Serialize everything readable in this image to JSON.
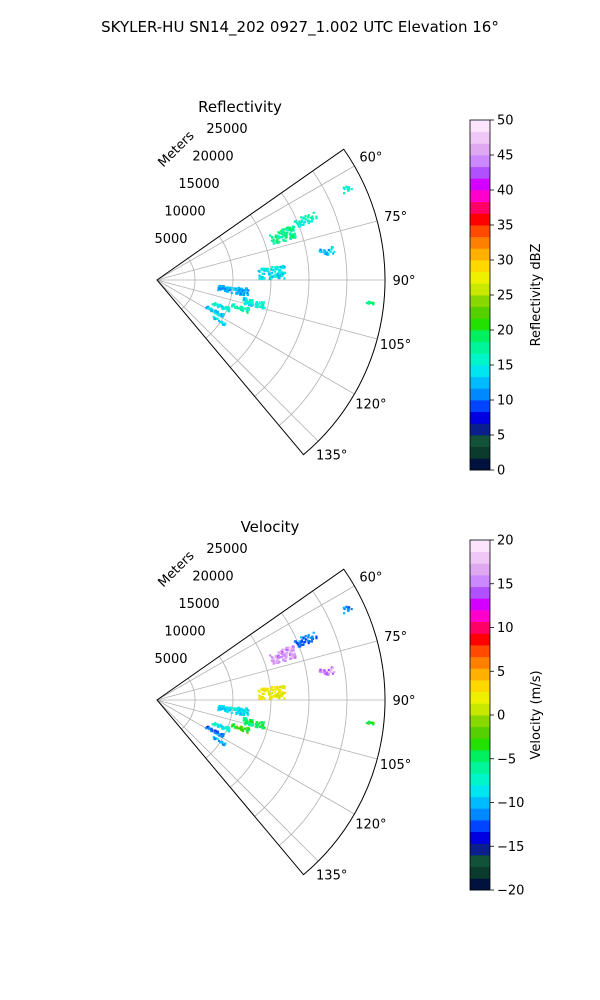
{
  "figure": {
    "suptitle": "SKYLER-HU  SN14_202  0927_1.002 UTC Elevation 16°"
  },
  "chart_data": [
    {
      "type": "heatmap",
      "projection": "polar-sector",
      "title": "Reflectivity",
      "radius_label": "Meters",
      "radius_range": [
        0,
        30000
      ],
      "radius_ticks": [
        5000,
        10000,
        15000,
        20000,
        25000
      ],
      "azimuth_range_deg": [
        55,
        140
      ],
      "azimuth_ticks_deg": [
        60,
        75,
        90,
        105,
        120,
        135
      ],
      "azimuth_tick_labels": [
        "60°",
        "75°",
        "90°",
        "105°",
        "120°",
        "135°"
      ],
      "grid": true,
      "colorbar": {
        "label": "Reflectivity dBZ",
        "range": [
          0,
          50
        ],
        "ticks": [
          0,
          5,
          10,
          15,
          20,
          25,
          30,
          35,
          40,
          45,
          50
        ],
        "tick_labels": [
          "0",
          "5",
          "10",
          "15",
          "20",
          "25",
          "30",
          "35",
          "40",
          "45",
          "50"
        ],
        "colors": [
          "#02123e",
          "#0a3b2c",
          "#12523a",
          "#0a1f8c",
          "#0000e0",
          "#0044ff",
          "#0088ff",
          "#00bbff",
          "#00e6f0",
          "#00f5c8",
          "#00f59a",
          "#00f060",
          "#22e000",
          "#55d000",
          "#88d800",
          "#c8e800",
          "#eef000",
          "#ffd800",
          "#ffb000",
          "#ff8000",
          "#ff4a00",
          "#ff0000",
          "#ff0066",
          "#ff00cc",
          "#d400ff",
          "#b050ff",
          "#cc88ff",
          "#e0a8f0",
          "#f0c8f8",
          "#fbe4fc"
        ]
      },
      "regions": [
        {
          "az": 70.0,
          "r": 17500,
          "daz": 5.0,
          "dr": 3500,
          "value": 18
        },
        {
          "az": 67.5,
          "r": 21000,
          "daz": 3.0,
          "dr": 3000,
          "value": 16
        },
        {
          "az": 64.0,
          "r": 27500,
          "daz": 1.5,
          "dr": 1500,
          "value": 16
        },
        {
          "az": 80.0,
          "r": 22500,
          "daz": 2.5,
          "dr": 2000,
          "value": 13
        },
        {
          "az": 86.0,
          "r": 15000,
          "daz": 6.0,
          "dr": 3500,
          "value": 14
        },
        {
          "az": 97.0,
          "r": 10000,
          "daz": 5.0,
          "dr": 4000,
          "value": 12
        },
        {
          "az": 103.0,
          "r": 13000,
          "daz": 4.0,
          "dr": 3000,
          "value": 15
        },
        {
          "az": 108.0,
          "r": 11500,
          "daz": 3.0,
          "dr": 2500,
          "value": 17
        },
        {
          "az": 112.0,
          "r": 9000,
          "daz": 3.0,
          "dr": 2500,
          "value": 15
        },
        {
          "az": 118.0,
          "r": 8500,
          "daz": 3.0,
          "dr": 2500,
          "value": 13
        },
        {
          "az": 123.0,
          "r": 9500,
          "daz": 2.0,
          "dr": 2000,
          "value": 14
        },
        {
          "az": 96.0,
          "r": 28000,
          "daz": 1.0,
          "dr": 1000,
          "value": 18
        }
      ]
    },
    {
      "type": "heatmap",
      "projection": "polar-sector",
      "title": "Velocity",
      "radius_label": "Meters",
      "radius_range": [
        0,
        30000
      ],
      "radius_ticks": [
        5000,
        10000,
        15000,
        20000,
        25000
      ],
      "azimuth_range_deg": [
        55,
        140
      ],
      "azimuth_ticks_deg": [
        60,
        75,
        90,
        105,
        120,
        135
      ],
      "azimuth_tick_labels": [
        "60°",
        "75°",
        "90°",
        "105°",
        "120°",
        "135°"
      ],
      "grid": true,
      "colorbar": {
        "label": "Velocity (m/s)",
        "range": [
          -20,
          20
        ],
        "ticks": [
          -20,
          -15,
          -10,
          -5,
          0,
          5,
          10,
          15,
          20
        ],
        "tick_labels": [
          "−20",
          "−15",
          "−10",
          "−5",
          "0",
          "5",
          "10",
          "15",
          "20"
        ],
        "colors": [
          "#02123e",
          "#0a3b2c",
          "#12523a",
          "#0a1f8c",
          "#0000e0",
          "#0044ff",
          "#0088ff",
          "#00bbff",
          "#00e6f0",
          "#00f5c8",
          "#00f59a",
          "#00f060",
          "#22e000",
          "#55d000",
          "#88d800",
          "#c8e800",
          "#eef000",
          "#ffd800",
          "#ffb000",
          "#ff8000",
          "#ff4a00",
          "#ff0000",
          "#ff0066",
          "#ff00cc",
          "#d400ff",
          "#b050ff",
          "#cc88ff",
          "#e0a8f0",
          "#f0c8f8",
          "#fbe4fc"
        ]
      },
      "regions": [
        {
          "az": 70.0,
          "r": 17500,
          "daz": 5.0,
          "dr": 3500,
          "value": 16
        },
        {
          "az": 67.5,
          "r": 21000,
          "daz": 3.0,
          "dr": 3000,
          "value": -12
        },
        {
          "az": 64.0,
          "r": 27500,
          "daz": 1.5,
          "dr": 1500,
          "value": -11
        },
        {
          "az": 80.0,
          "r": 22500,
          "daz": 2.5,
          "dr": 2000,
          "value": 15
        },
        {
          "az": 86.0,
          "r": 15000,
          "daz": 6.0,
          "dr": 3500,
          "value": 2
        },
        {
          "az": 97.0,
          "r": 10000,
          "daz": 5.0,
          "dr": 4000,
          "value": -9
        },
        {
          "az": 103.0,
          "r": 13000,
          "daz": 4.0,
          "dr": 3000,
          "value": -5
        },
        {
          "az": 108.0,
          "r": 11500,
          "daz": 3.0,
          "dr": 2500,
          "value": -3
        },
        {
          "az": 112.0,
          "r": 9000,
          "daz": 3.0,
          "dr": 2500,
          "value": -8
        },
        {
          "az": 118.0,
          "r": 8500,
          "daz": 3.0,
          "dr": 2500,
          "value": -12
        },
        {
          "az": 123.0,
          "r": 9500,
          "daz": 2.0,
          "dr": 2000,
          "value": -10
        },
        {
          "az": 96.0,
          "r": 28000,
          "daz": 1.0,
          "dr": 1000,
          "value": -4
        }
      ]
    }
  ]
}
